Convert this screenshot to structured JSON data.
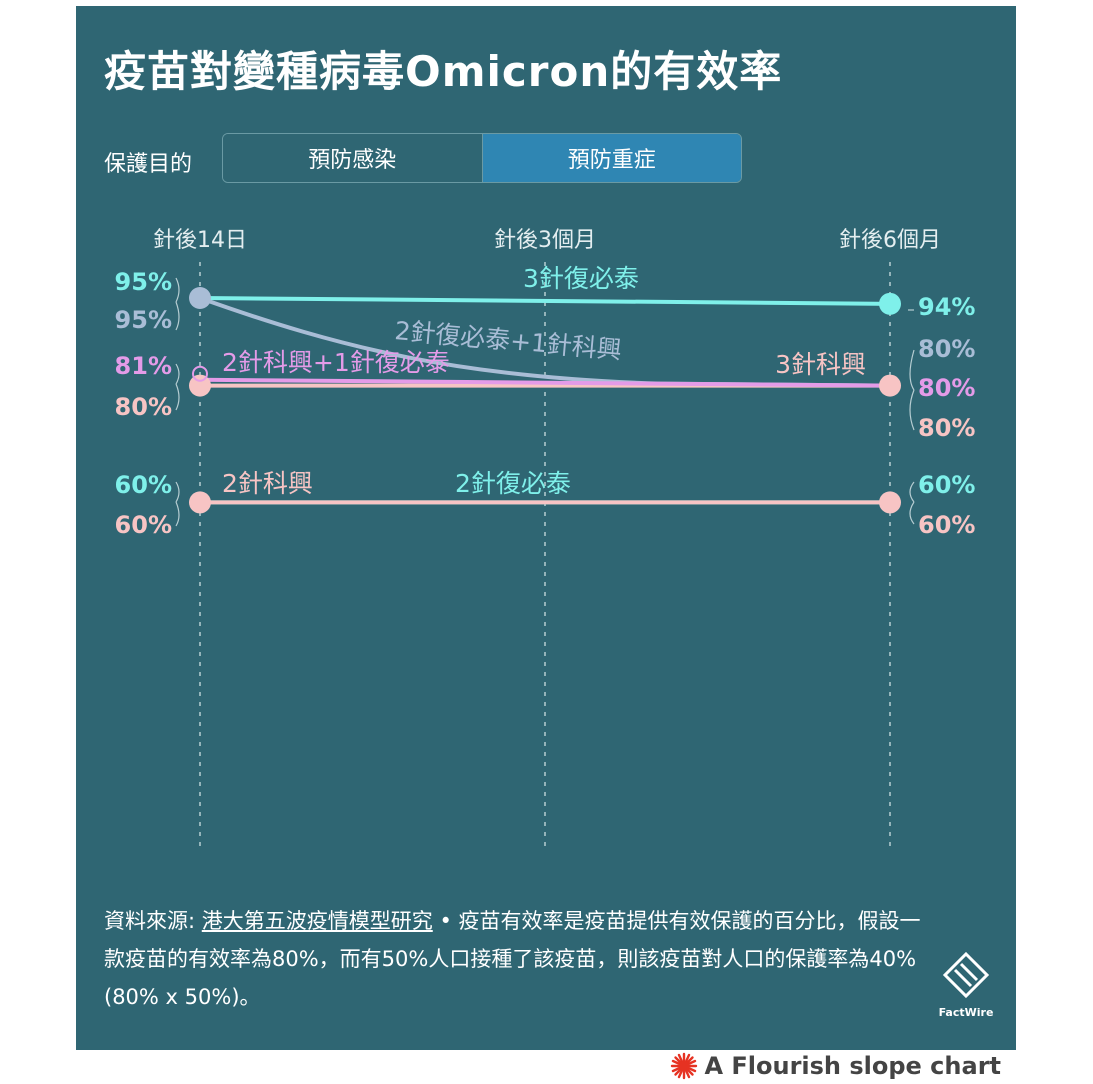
{
  "title": "疫苗對變種病毒Omicron的有效率",
  "toggle": {
    "label": "保護目的",
    "options": [
      "預防感染",
      "預防重症"
    ],
    "selected": "預防重症"
  },
  "chart_data": {
    "type": "slope",
    "title": "疫苗對變種病毒Omicron的有效率",
    "columns": [
      "針後14日",
      "針後3個月",
      "針後6個月"
    ],
    "ylim": [
      0,
      100
    ],
    "series": [
      {
        "name": "3針復必泰",
        "values": [
          95,
          null,
          94
        ],
        "color": "#7ff0ea",
        "start_label": "95%",
        "end_label": "94%"
      },
      {
        "name": "2針復必泰+1針科興",
        "values": [
          95,
          null,
          80
        ],
        "color": "#a9bdd6",
        "start_label": "95%",
        "end_label": "80%"
      },
      {
        "name": "2針科興+1針復必泰",
        "values": [
          81,
          null,
          80
        ],
        "color": "#e49be8",
        "start_label": "81%",
        "end_label": "80%"
      },
      {
        "name": "3針科興",
        "values": [
          80,
          null,
          80
        ],
        "color": "#f7c4c4",
        "start_label": "80%",
        "end_label": "80%"
      },
      {
        "name": "2針復必泰",
        "values": [
          60,
          null,
          60
        ],
        "color": "#7ff0ea",
        "start_label": "60%",
        "end_label": "60%"
      },
      {
        "name": "2針科興",
        "values": [
          60,
          null,
          60
        ],
        "color": "#f7c4c4",
        "start_label": "60%",
        "end_label": "60%"
      }
    ]
  },
  "footnote": {
    "prefix": "資料來源: ",
    "source_link": "港大第五波疫情模型研究",
    "text": " • 疫苗有效率是疫苗提供有效保護的百分比，假設一款疫苗的有效率為80%，而有50%人口接種了該疫苗，則該疫苗對人口的保護率為40% (80% x 50%)。"
  },
  "logo": "FactWire",
  "credit": "A Flourish slope chart",
  "colors": {
    "background": "#2f6673",
    "toggle_active": "#2f86b3",
    "cyan": "#7ff0ea",
    "slate": "#a9bdd6",
    "magenta": "#e49be8",
    "pink": "#f7c4c4",
    "credit_red": "#e63222"
  }
}
